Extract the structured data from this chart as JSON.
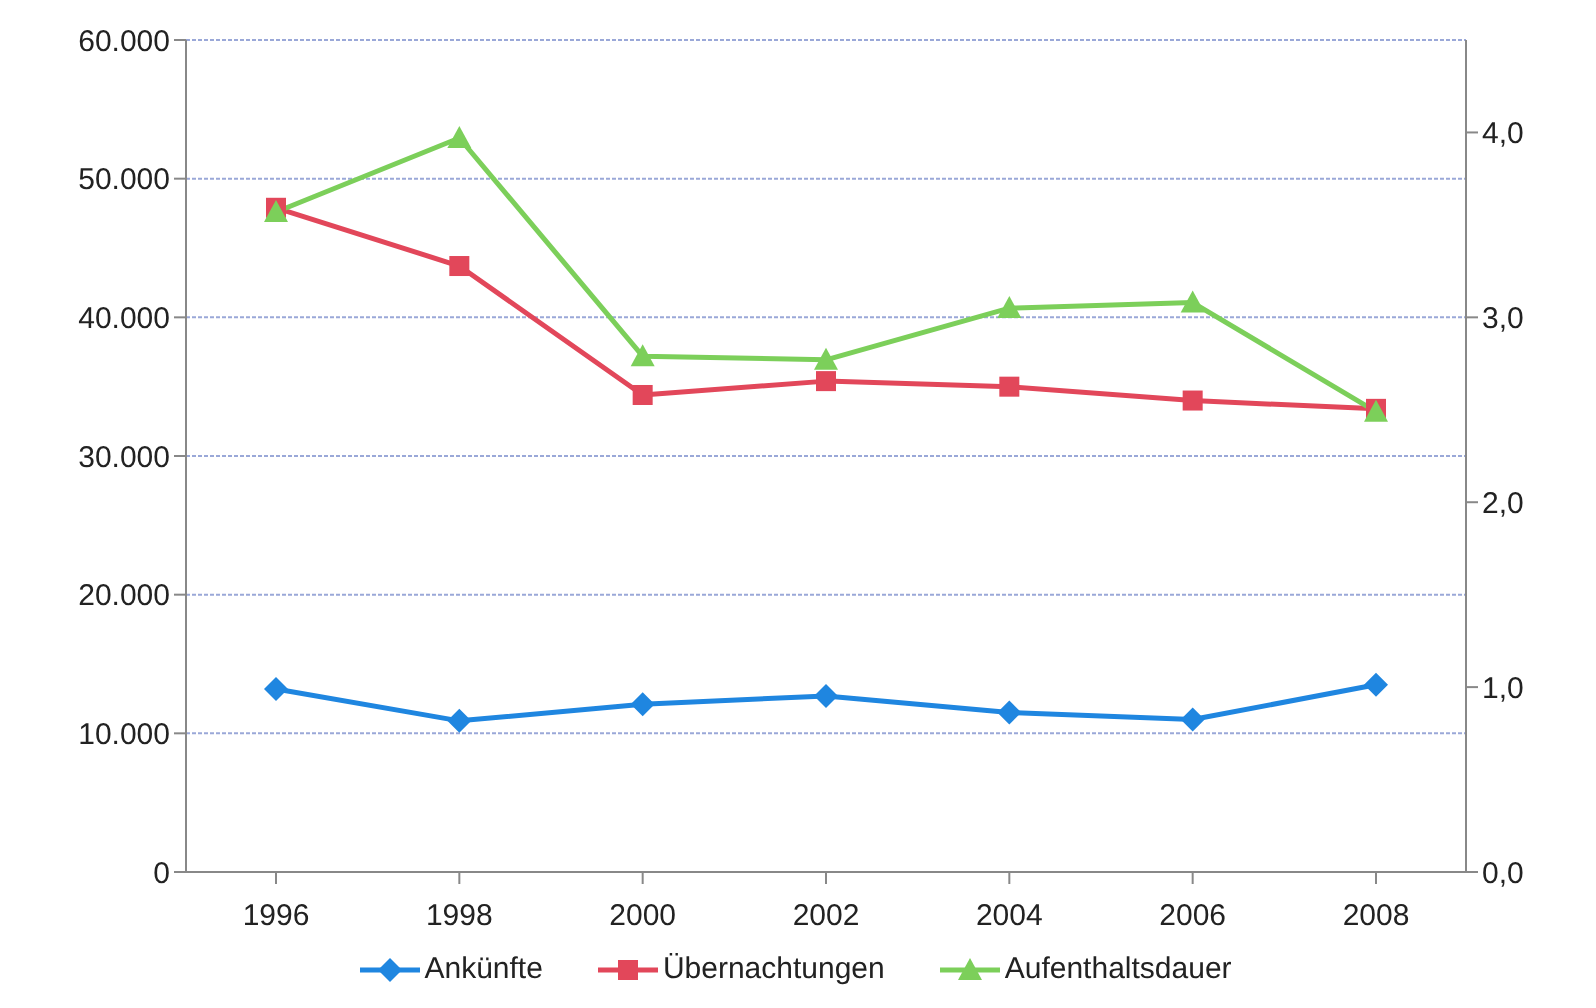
{
  "chart_data": {
    "type": "line",
    "categories": [
      "1996",
      "1998",
      "2000",
      "2002",
      "2004",
      "2006",
      "2008"
    ],
    "series": [
      {
        "name": "Ankünfte",
        "color": "#1f86e0",
        "marker": "diamond",
        "values": [
          13200,
          10900,
          12100,
          12700,
          11500,
          11000,
          13500
        ]
      },
      {
        "name": "Übernachtungen",
        "color": "#e2475a",
        "marker": "square",
        "values": [
          47900,
          43700,
          34400,
          35400,
          35000,
          34000,
          33400
        ]
      },
      {
        "name": "Aufenthaltsdauer",
        "color": "#7ccf5a",
        "marker": "triangle",
        "axis": "y2",
        "values": [
          3.57,
          3.97,
          2.79,
          2.77,
          3.05,
          3.08,
          2.49
        ]
      }
    ],
    "ylim": [
      0,
      60000
    ],
    "yticks": [
      {
        "value": 0,
        "label": "0"
      },
      {
        "value": 10000,
        "label": "10.000"
      },
      {
        "value": 20000,
        "label": "20.000"
      },
      {
        "value": 30000,
        "label": "30.000"
      },
      {
        "value": 40000,
        "label": "40.000"
      },
      {
        "value": 50000,
        "label": "50.000"
      },
      {
        "value": 60000,
        "label": "60.000"
      }
    ],
    "y2lim": [
      0,
      4.5
    ],
    "y2ticks": [
      {
        "value": 0,
        "label": "0,0"
      },
      {
        "value": 1,
        "label": "1,0"
      },
      {
        "value": 2,
        "label": "2,0"
      },
      {
        "value": 3,
        "label": "3,0"
      },
      {
        "value": 4,
        "label": "4,0"
      }
    ],
    "grid": "y",
    "legend": "bottom"
  }
}
